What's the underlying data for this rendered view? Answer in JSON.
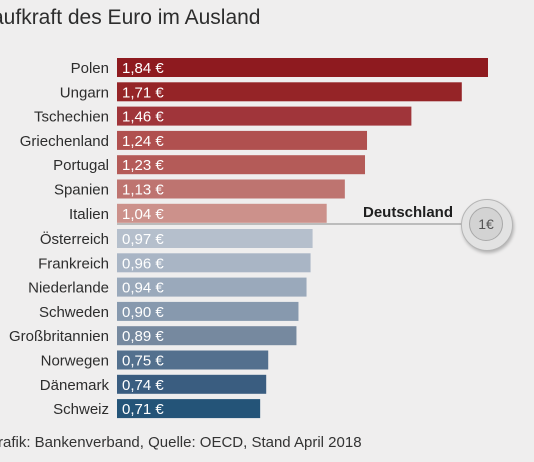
{
  "chart_data": {
    "type": "bar",
    "orientation": "horizontal",
    "title": "aufkraft des Euro im Ausland",
    "categories": [
      "Polen",
      "Ungarn",
      "Tschechien",
      "Griechenland",
      "Portugal",
      "Spanien",
      "Italien",
      "Österreich",
      "Frankreich",
      "Niederlande",
      "Schweden",
      "Großbritannien",
      "Norwegen",
      "Dänemark",
      "Schweiz"
    ],
    "values": [
      1.84,
      1.71,
      1.46,
      1.24,
      1.23,
      1.13,
      1.04,
      0.97,
      0.96,
      0.94,
      0.9,
      0.89,
      0.75,
      0.74,
      0.71
    ],
    "value_labels": [
      "1,84 €",
      "1,71 €",
      "1,46 €",
      "1,24 €",
      "1,23 €",
      "1,13 €",
      "1,04 €",
      "0,97 €",
      "0,96 €",
      "0,94 €",
      "0,90 €",
      "0,89 €",
      "0,75 €",
      "0,74 €",
      "0,71 €"
    ],
    "colors": [
      "#8e1a1f",
      "#952427",
      "#a0353a",
      "#b0504f",
      "#b45b58",
      "#be7470",
      "#cc918b",
      "#b5bfcc",
      "#a9b5c5",
      "#9aa9bb",
      "#8799ae",
      "#76899f",
      "#53708e",
      "#3a5d80",
      "#245478"
    ],
    "reference": {
      "label": "Deutschland",
      "value": 1.0,
      "coin_label": "1€"
    },
    "xlim": [
      0,
      1.84
    ],
    "source": "rafik: Bankenverband, Quelle: OECD, Stand April 2018"
  }
}
